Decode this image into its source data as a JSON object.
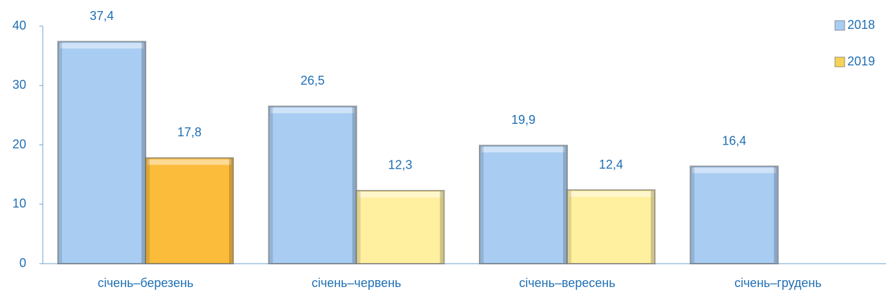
{
  "chart_data": {
    "type": "bar",
    "categories": [
      "січень–березень",
      "січень–червень",
      "січень–вересень",
      "січень–грудень"
    ],
    "series": [
      {
        "name": "2018",
        "color": "#a9cdf2",
        "colors": [
          "#a9cdf2",
          "#a9cdf2",
          "#a9cdf2",
          "#a9cdf2"
        ],
        "values": [
          37.4,
          26.5,
          19.9,
          16.4
        ],
        "value_labels": [
          "37,4",
          "26,5",
          "19,9",
          "16,4"
        ]
      },
      {
        "name": "2019",
        "color": "#f3d35a",
        "colors": [
          "#fbbc3c",
          "#fff0a0",
          "#fff0a0",
          null
        ],
        "values": [
          17.8,
          12.3,
          12.4,
          null
        ],
        "value_labels": [
          "17,8",
          "12,3",
          "12,4",
          null
        ]
      }
    ],
    "ylim": [
      0,
      40
    ],
    "yticks": [
      0,
      10,
      20,
      30,
      40
    ],
    "legend": "top-right"
  }
}
